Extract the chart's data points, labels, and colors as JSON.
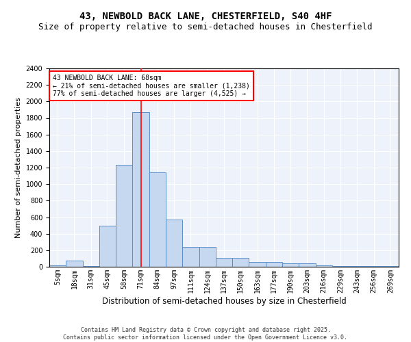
{
  "title_line1": "43, NEWBOLD BACK LANE, CHESTERFIELD, S40 4HF",
  "title_line2": "Size of property relative to semi-detached houses in Chesterfield",
  "xlabel": "Distribution of semi-detached houses by size in Chesterfield",
  "ylabel": "Number of semi-detached properties",
  "categories": [
    "5sqm",
    "18sqm",
    "31sqm",
    "45sqm",
    "58sqm",
    "71sqm",
    "84sqm",
    "97sqm",
    "111sqm",
    "124sqm",
    "137sqm",
    "150sqm",
    "163sqm",
    "177sqm",
    "190sqm",
    "203sqm",
    "216sqm",
    "229sqm",
    "243sqm",
    "256sqm",
    "269sqm"
  ],
  "values": [
    15,
    75,
    10,
    500,
    1230,
    1870,
    1140,
    575,
    240,
    240,
    110,
    110,
    60,
    60,
    40,
    40,
    20,
    10,
    10,
    10,
    5
  ],
  "bar_color": "#c5d8f0",
  "bar_edge_color": "#5b8ec9",
  "vline_x_idx": 5,
  "vline_color": "red",
  "annotation_text": "43 NEWBOLD BACK LANE: 68sqm\n← 21% of semi-detached houses are smaller (1,238)\n77% of semi-detached houses are larger (4,525) →",
  "annotation_box_color": "white",
  "annotation_box_edge": "red",
  "ylim": [
    0,
    2400
  ],
  "yticks": [
    0,
    200,
    400,
    600,
    800,
    1000,
    1200,
    1400,
    1600,
    1800,
    2000,
    2200,
    2400
  ],
  "footer_line1": "Contains HM Land Registry data © Crown copyright and database right 2025.",
  "footer_line2": "Contains public sector information licensed under the Open Government Licence v3.0.",
  "bg_color": "#eef2fb",
  "title_fontsize": 10,
  "subtitle_fontsize": 9,
  "tick_fontsize": 7,
  "ylabel_fontsize": 8,
  "xlabel_fontsize": 8.5,
  "annotation_fontsize": 7,
  "footer_fontsize": 6
}
